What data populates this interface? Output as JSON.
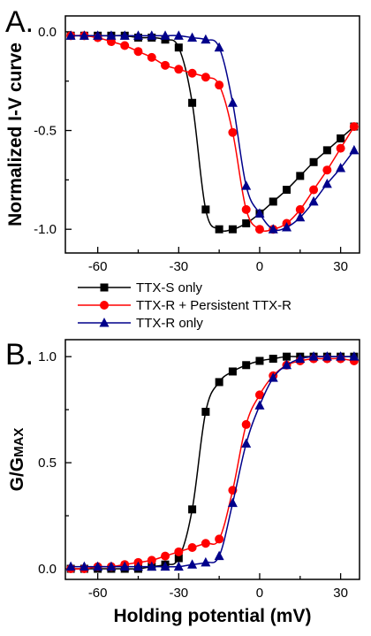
{
  "legend": [
    {
      "label": "TTX-S only",
      "color": "#000000",
      "marker": "square"
    },
    {
      "label": "TTX-R + Persistent TTX-R",
      "color": "#ff0000",
      "marker": "circle"
    },
    {
      "label": "TTX-R only",
      "color": "#00008b",
      "marker": "triangle"
    }
  ],
  "chart_data": [
    {
      "type": "line",
      "panel_label": "A.",
      "ylabel": "Normalized I-V curve",
      "xlabel": "",
      "xlim": [
        -72,
        37
      ],
      "ylim": [
        -1.12,
        0.08
      ],
      "xticks": [
        -60,
        -30,
        0,
        30
      ],
      "xtick_labels": [
        "-60",
        "-30",
        "0",
        "30"
      ],
      "yticks": [
        0.0,
        -0.5,
        -1.0
      ],
      "ytick_labels": [
        "0.0",
        "-0.5",
        "-1.0"
      ],
      "series": [
        {
          "name": "TTX-S only",
          "color": "#000000",
          "marker": "square",
          "x": [
            -70,
            -65,
            -60,
            -55,
            -50,
            -45,
            -40,
            -35,
            -30,
            -25,
            -20,
            -15,
            -10,
            -5,
            0,
            5,
            10,
            15,
            20,
            25,
            30,
            35
          ],
          "y": [
            -0.02,
            -0.02,
            -0.02,
            -0.02,
            -0.02,
            -0.03,
            -0.03,
            -0.04,
            -0.08,
            -0.36,
            -0.9,
            -1.0,
            -1.0,
            -0.97,
            -0.92,
            -0.86,
            -0.8,
            -0.73,
            -0.66,
            -0.6,
            -0.54,
            -0.48
          ]
        },
        {
          "name": "TTX-R + Persistent TTX-R",
          "color": "#ff0000",
          "marker": "circle",
          "x": [
            -70,
            -65,
            -60,
            -55,
            -50,
            -45,
            -40,
            -35,
            -30,
            -25,
            -20,
            -15,
            -10,
            -5,
            0,
            5,
            10,
            15,
            20,
            25,
            30,
            35
          ],
          "y": [
            -0.02,
            -0.02,
            -0.03,
            -0.05,
            -0.07,
            -0.1,
            -0.13,
            -0.17,
            -0.19,
            -0.21,
            -0.23,
            -0.27,
            -0.51,
            -0.9,
            -1.0,
            -1.0,
            -0.97,
            -0.9,
            -0.8,
            -0.7,
            -0.59,
            -0.48
          ]
        },
        {
          "name": "TTX-R only",
          "color": "#00008b",
          "marker": "triangle",
          "x": [
            -70,
            -65,
            -60,
            -55,
            -50,
            -45,
            -40,
            -35,
            -30,
            -25,
            -20,
            -15,
            -10,
            -5,
            0,
            5,
            10,
            15,
            20,
            25,
            30,
            35
          ],
          "y": [
            -0.02,
            -0.02,
            -0.02,
            -0.02,
            -0.02,
            -0.02,
            -0.02,
            -0.02,
            -0.02,
            -0.03,
            -0.04,
            -0.08,
            -0.36,
            -0.78,
            -0.92,
            -1.0,
            -0.99,
            -0.94,
            -0.86,
            -0.77,
            -0.69,
            -0.6
          ]
        }
      ]
    },
    {
      "type": "line",
      "panel_label": "B.",
      "ylabel": "G/GMAX",
      "xlabel": "Holding potential (mV)",
      "xlim": [
        -72,
        37
      ],
      "ylim": [
        -0.05,
        1.08
      ],
      "xticks": [
        -60,
        -30,
        0,
        30
      ],
      "xtick_labels": [
        "-60",
        "-30",
        "0",
        "30"
      ],
      "yticks": [
        0.0,
        0.5,
        1.0
      ],
      "ytick_labels": [
        "0.0",
        "0.5",
        "1.0"
      ],
      "series": [
        {
          "name": "TTX-S only",
          "color": "#000000",
          "marker": "square",
          "x": [
            -70,
            -65,
            -60,
            -55,
            -50,
            -45,
            -40,
            -35,
            -30,
            -25,
            -20,
            -15,
            -10,
            -5,
            0,
            5,
            10,
            15,
            20,
            25,
            30,
            35
          ],
          "y": [
            0.0,
            0.0,
            0.0,
            0.0,
            0.0,
            0.0,
            0.01,
            0.02,
            0.05,
            0.28,
            0.74,
            0.88,
            0.93,
            0.96,
            0.98,
            0.99,
            1.0,
            1.0,
            1.0,
            1.0,
            1.0,
            1.0
          ]
        },
        {
          "name": "TTX-R + Persistent TTX-R",
          "color": "#ff0000",
          "marker": "circle",
          "x": [
            -70,
            -65,
            -60,
            -55,
            -50,
            -45,
            -40,
            -35,
            -30,
            -25,
            -20,
            -15,
            -10,
            -5,
            0,
            5,
            10,
            15,
            20,
            25,
            30,
            35
          ],
          "y": [
            0.0,
            0.0,
            0.01,
            0.01,
            0.02,
            0.03,
            0.04,
            0.06,
            0.08,
            0.1,
            0.12,
            0.14,
            0.37,
            0.68,
            0.82,
            0.91,
            0.96,
            0.98,
            0.99,
            0.99,
            0.99,
            0.98
          ]
        },
        {
          "name": "TTX-R only",
          "color": "#00008b",
          "marker": "triangle",
          "x": [
            -70,
            -65,
            -60,
            -55,
            -50,
            -45,
            -40,
            -35,
            -30,
            -25,
            -20,
            -15,
            -10,
            -5,
            0,
            5,
            10,
            15,
            20,
            25,
            30,
            35
          ],
          "y": [
            0.01,
            0.01,
            0.01,
            0.01,
            0.01,
            0.01,
            0.01,
            0.01,
            0.01,
            0.02,
            0.03,
            0.06,
            0.31,
            0.59,
            0.77,
            0.9,
            0.96,
            0.99,
            1.0,
            1.0,
            1.0,
            1.0
          ]
        }
      ]
    }
  ]
}
